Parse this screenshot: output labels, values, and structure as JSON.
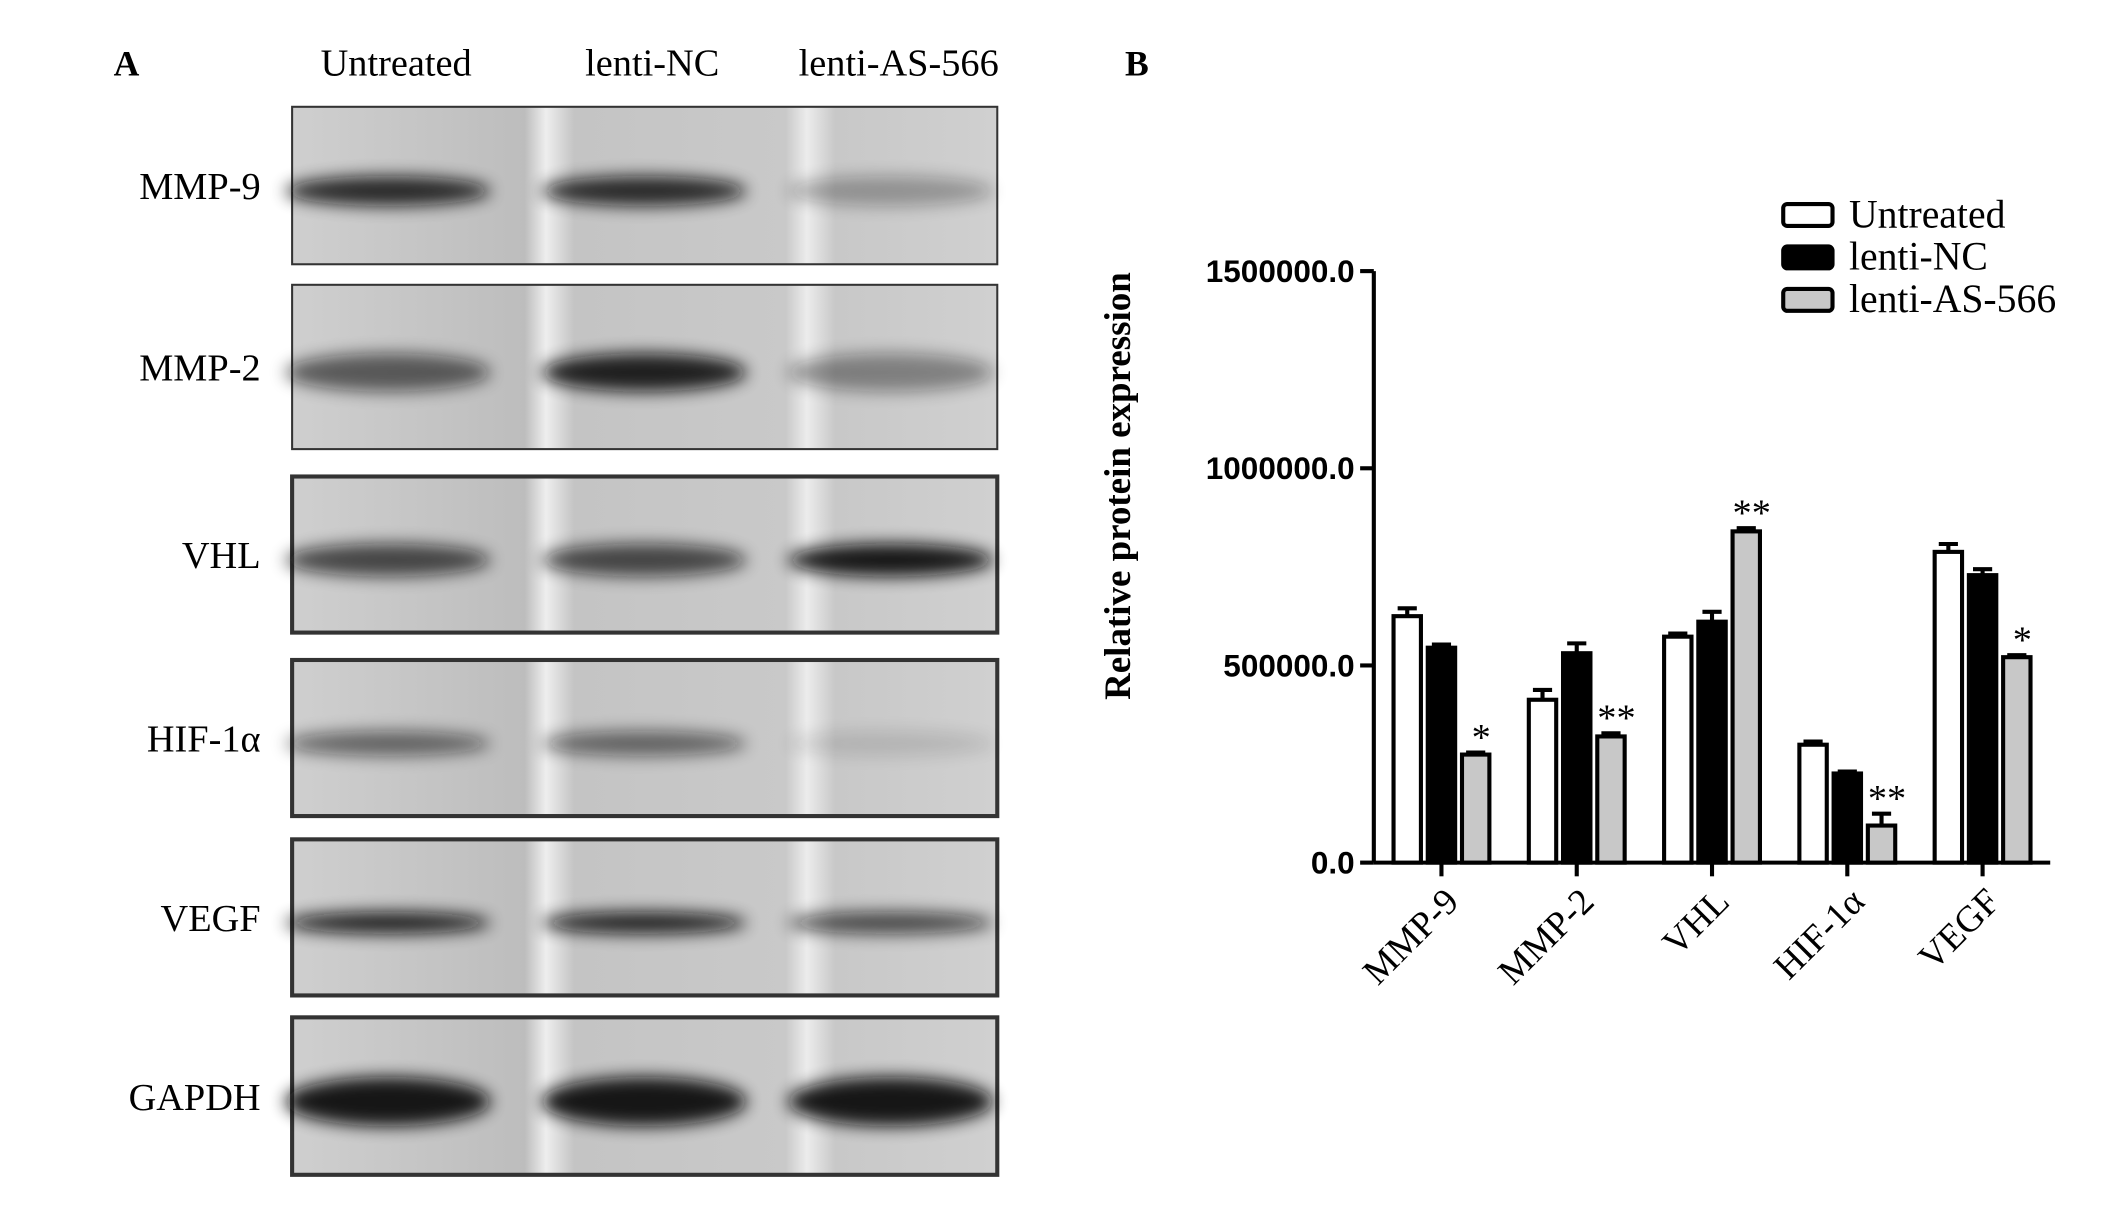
{
  "panel_a": {
    "label": "A",
    "lanes": [
      "Untreated",
      "lenti-NC",
      "lenti-AS-566"
    ],
    "proteins": [
      "MMP-9",
      "MMP-2",
      "VHL",
      "HIF-1α",
      "VEGF",
      "GAPDH"
    ]
  },
  "chart_data": {
    "type": "bar",
    "panel_label": "B",
    "y_label": "Relative protein expression",
    "categories": [
      "MMP-9",
      "MMP-2",
      "VHL",
      "HIF-1α",
      "VEGF"
    ],
    "series": [
      {
        "name": "Untreated",
        "color": "#ffffff",
        "values": [
          625000,
          413000,
          573000,
          299000,
          788000
        ],
        "errors": [
          20000,
          25000,
          8000,
          8000,
          20000
        ]
      },
      {
        "name": "lenti-NC",
        "color": "#000000",
        "values": [
          545000,
          531000,
          611000,
          226000,
          729000
        ],
        "errors": [
          8000,
          25000,
          25000,
          5000,
          15000
        ]
      },
      {
        "name": "lenti-AS-566",
        "color": "#c8c8c8",
        "values": [
          274000,
          320000,
          840000,
          94000,
          521000
        ],
        "errors": [
          5000,
          8000,
          8000,
          30000,
          5000
        ],
        "annotations": [
          "*",
          "**",
          "**",
          "**",
          "*"
        ]
      }
    ],
    "ylim": [
      0,
      1500000
    ],
    "yticks": [
      {
        "value": 0,
        "label": "0.0"
      },
      {
        "value": 500000,
        "label": "500000.0"
      },
      {
        "value": 1000000,
        "label": "1000000.0"
      },
      {
        "value": 1500000,
        "label": "1500000.0"
      }
    ],
    "legend": "upper right"
  }
}
